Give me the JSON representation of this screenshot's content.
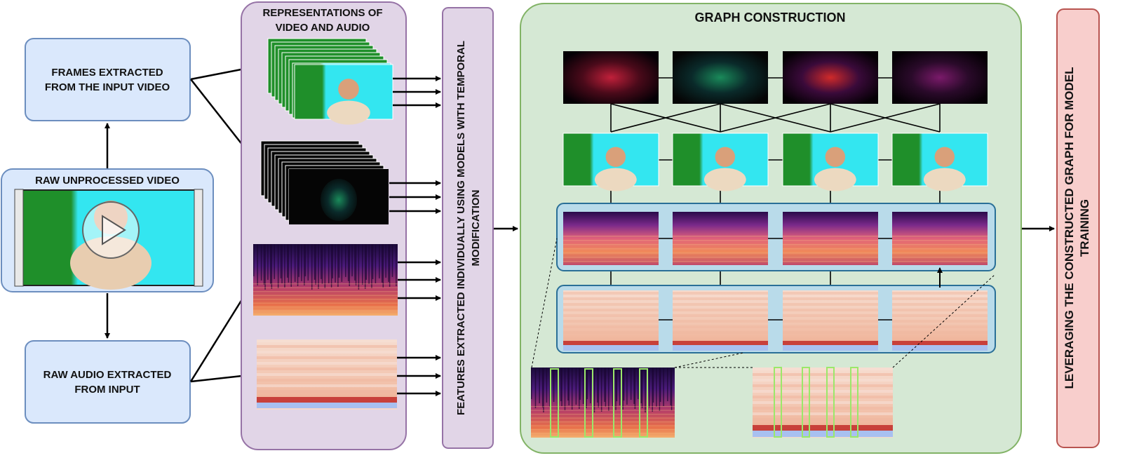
{
  "input_video": {
    "title": "RAW UNPROCESSED VIDEO"
  },
  "frames_box": {
    "line1": "FRAMES EXTRACTED",
    "line2": "FROM THE INPUT VIDEO"
  },
  "audio_box": {
    "line1": "RAW AUDIO EXTRACTED",
    "line2": "FROM INPUT"
  },
  "representations": {
    "line1": "REPRESENTATIONS OF",
    "line2": "VIDEO AND AUDIO"
  },
  "features": {
    "line1": "FEATURES EXTRACTED INDIVIDUALLY USING MODELS WITH TEMPORAL",
    "line2": "MODIFICATION"
  },
  "graph": {
    "title": "GRAPH CONSTRUCTION"
  },
  "training": {
    "line1": "LEVERAGING THE CONSTRUCTED GRAPH FOR MODEL",
    "line2": "TRAINING"
  },
  "colors": {
    "blue_fill": "#dae8fc",
    "blue_stroke": "#6c8ebf",
    "purple_fill": "#e1d5e7",
    "purple_stroke": "#9673a6",
    "green_fill": "#d5e8d4",
    "green_stroke": "#82b366",
    "red_fill": "#f8cecc",
    "red_stroke": "#b85450",
    "teal_stroke": "#2a6f97",
    "teal_fill": "#b9dbea",
    "screen_cyan": "#33e6f0",
    "screen_green": "#1f8f2a"
  }
}
